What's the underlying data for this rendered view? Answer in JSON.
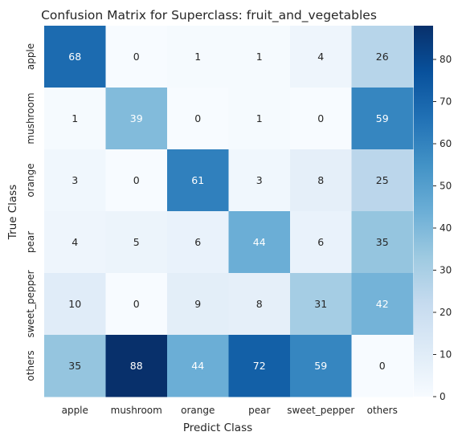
{
  "chart_data": {
    "type": "heatmap",
    "title": "Confusion Matrix for Superclass: fruit_and_vegetables",
    "xlabel": "Predict Class",
    "ylabel": "True Class",
    "x_categories": [
      "apple",
      "mushroom",
      "orange",
      "pear",
      "sweet_pepper",
      "others"
    ],
    "y_categories": [
      "apple",
      "mushroom",
      "orange",
      "pear",
      "sweet_pepper",
      "others"
    ],
    "values": [
      [
        68,
        0,
        1,
        1,
        4,
        26
      ],
      [
        1,
        39,
        0,
        1,
        0,
        59
      ],
      [
        3,
        0,
        61,
        3,
        8,
        25
      ],
      [
        4,
        5,
        6,
        44,
        6,
        35
      ],
      [
        10,
        0,
        9,
        8,
        31,
        42
      ],
      [
        35,
        88,
        44,
        72,
        59,
        0
      ]
    ],
    "colormap": "Blues",
    "value_range": [
      0,
      88
    ],
    "colorbar_ticks": [
      0,
      10,
      20,
      30,
      40,
      50,
      60,
      70,
      80
    ],
    "grid": false
  }
}
